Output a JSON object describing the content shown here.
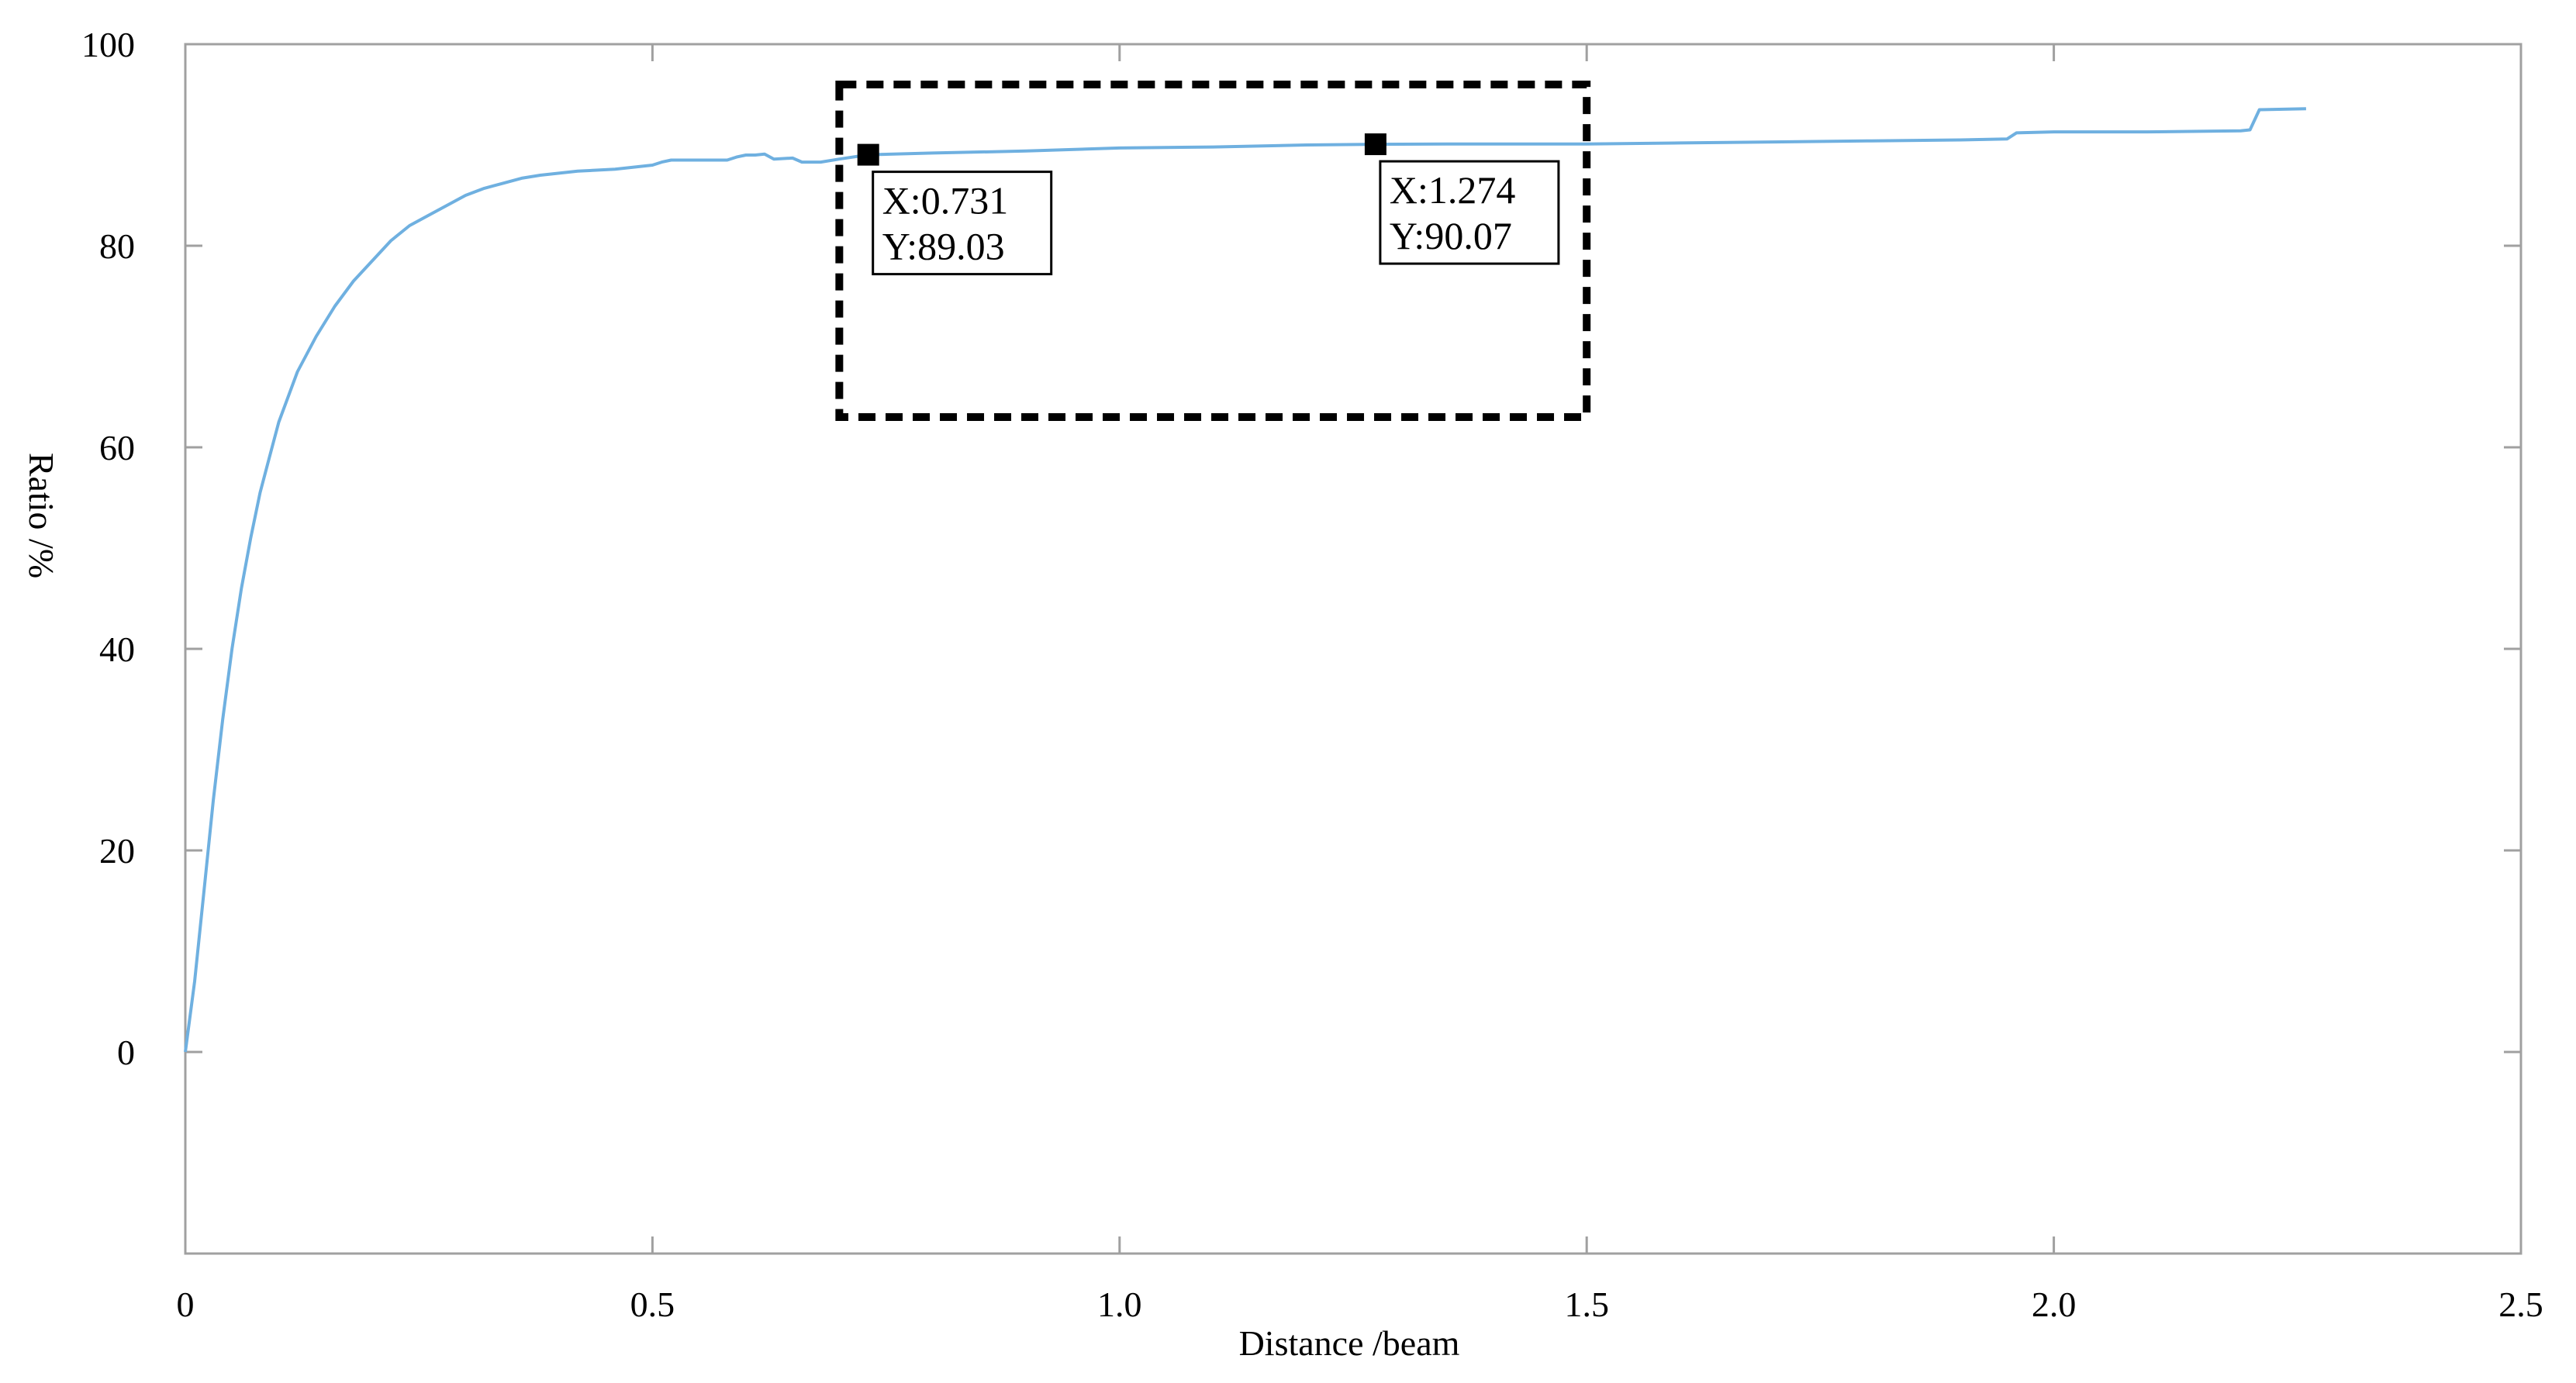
{
  "chart_data": {
    "type": "line",
    "xlabel": "Distance /beam",
    "ylabel": "Ratio /%",
    "xlim": [
      0,
      2.5
    ],
    "ylim": [
      -20,
      100
    ],
    "grid": false,
    "x_ticks": [
      {
        "value": 0,
        "label": "0"
      },
      {
        "value": 0.5,
        "label": "0.5"
      },
      {
        "value": 1.0,
        "label": "1.0"
      },
      {
        "value": 1.5,
        "label": "1.5"
      },
      {
        "value": 2.0,
        "label": "2.0"
      },
      {
        "value": 2.5,
        "label": "2.5"
      }
    ],
    "y_ticks": [
      {
        "value": 0,
        "label": "0"
      },
      {
        "value": 20,
        "label": "20"
      },
      {
        "value": 40,
        "label": "40"
      },
      {
        "value": 60,
        "label": "60"
      },
      {
        "value": 80,
        "label": "80"
      },
      {
        "value": 100,
        "label": "100"
      }
    ],
    "series": [
      {
        "color": "#6fb0e0",
        "x": [
          0,
          0.01,
          0.02,
          0.03,
          0.04,
          0.05,
          0.06,
          0.07,
          0.08,
          0.09,
          0.1,
          0.12,
          0.14,
          0.16,
          0.18,
          0.2,
          0.22,
          0.24,
          0.26,
          0.28,
          0.3,
          0.32,
          0.34,
          0.36,
          0.38,
          0.4,
          0.42,
          0.44,
          0.46,
          0.48,
          0.5,
          0.51,
          0.52,
          0.53,
          0.55,
          0.58,
          0.59,
          0.6,
          0.61,
          0.62,
          0.63,
          0.65,
          0.66,
          0.68,
          0.7,
          0.731,
          0.8,
          0.9,
          1.0,
          1.1,
          1.2,
          1.274,
          1.35,
          1.5,
          1.6,
          1.7,
          1.8,
          1.9,
          1.95,
          1.96,
          2.0,
          2.1,
          2.2,
          2.21,
          2.22,
          2.27
        ],
        "y": [
          0,
          7,
          16,
          25,
          33,
          40,
          46,
          51,
          55.5,
          59,
          62.5,
          67.5,
          71,
          74,
          76.5,
          78.5,
          80.5,
          82,
          83,
          84,
          85,
          85.7,
          86.2,
          86.7,
          87,
          87.2,
          87.4,
          87.5,
          87.6,
          87.8,
          88,
          88.3,
          88.5,
          88.5,
          88.5,
          88.5,
          88.8,
          89,
          89,
          89.1,
          88.6,
          88.7,
          88.3,
          88.3,
          88.6,
          89.03,
          89.2,
          89.4,
          89.7,
          89.8,
          90,
          90.07,
          90.1,
          90.1,
          90.2,
          90.3,
          90.4,
          90.5,
          90.6,
          91.2,
          91.3,
          91.3,
          91.4,
          91.5,
          93.5,
          93.6
        ]
      }
    ],
    "annotations": [
      {
        "x": 0.731,
        "y": 89.03,
        "line1": "X:0.731",
        "line2": "Y:89.03"
      },
      {
        "x": 1.274,
        "y": 90.07,
        "line1": "X:1.274",
        "line2": "Y:90.07"
      }
    ],
    "highlight_box": {
      "x0": 0.7,
      "x1": 1.5,
      "y0": 63,
      "y1": 96
    }
  }
}
